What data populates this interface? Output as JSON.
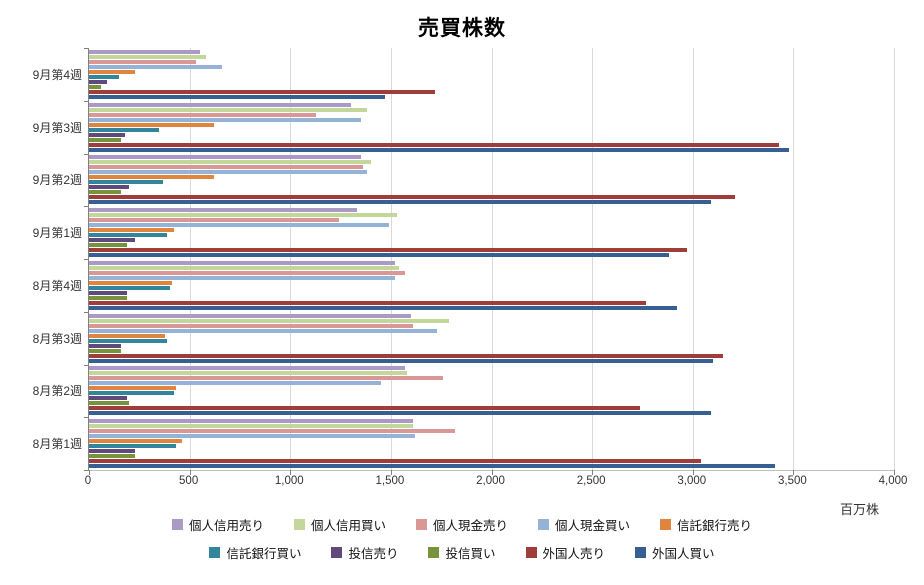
{
  "title": "売買株数",
  "unit_label": "百万株",
  "chart_data": {
    "type": "bar",
    "orientation": "horizontal",
    "title": "売買株数",
    "xlabel": "百万株",
    "ylabel": "",
    "grid": true,
    "legend_position": "bottom",
    "xlim": [
      0,
      4000
    ],
    "x_ticks": [
      0,
      500,
      1000,
      1500,
      2000,
      2500,
      3000,
      3500,
      4000
    ],
    "x_tick_labels": [
      "0",
      "500",
      "1,000",
      "1,500",
      "2,000",
      "2,500",
      "3,000",
      "3,500",
      "4,000"
    ],
    "categories": [
      "9月第4週",
      "9月第3週",
      "9月第2週",
      "9月第1週",
      "8月第4週",
      "8月第3週",
      "8月第2週",
      "8月第1週"
    ],
    "series": [
      {
        "name": "個人信用売り",
        "color": "#AB9AC6",
        "values": [
          550,
          1300,
          1350,
          1330,
          1520,
          1600,
          1570,
          1610
        ]
      },
      {
        "name": "個人信用買い",
        "color": "#C4D79B",
        "values": [
          580,
          1380,
          1400,
          1530,
          1540,
          1790,
          1580,
          1610
        ]
      },
      {
        "name": "個人現金売り",
        "color": "#D99795",
        "values": [
          530,
          1130,
          1360,
          1240,
          1570,
          1610,
          1760,
          1820
        ]
      },
      {
        "name": "個人現金買い",
        "color": "#95B3D7",
        "values": [
          660,
          1350,
          1380,
          1490,
          1520,
          1730,
          1450,
          1620
        ]
      },
      {
        "name": "信託銀行売り",
        "color": "#E0853E",
        "values": [
          230,
          620,
          620,
          420,
          410,
          380,
          430,
          460
        ]
      },
      {
        "name": "信託銀行買い",
        "color": "#31859C",
        "values": [
          150,
          350,
          370,
          390,
          400,
          390,
          420,
          430
        ]
      },
      {
        "name": "投信売り",
        "color": "#604A7B",
        "values": [
          90,
          180,
          200,
          230,
          190,
          160,
          190,
          230
        ]
      },
      {
        "name": "投信買い",
        "color": "#77933C",
        "values": [
          60,
          160,
          160,
          190,
          190,
          160,
          200,
          230
        ]
      },
      {
        "name": "外国人売り",
        "color": "#9E3D3A",
        "values": [
          1720,
          3430,
          3210,
          2970,
          2770,
          3150,
          2740,
          3040
        ]
      },
      {
        "name": "外国人買い",
        "color": "#376092",
        "values": [
          1470,
          3480,
          3090,
          2880,
          2920,
          3100,
          3090,
          3410
        ]
      }
    ]
  }
}
